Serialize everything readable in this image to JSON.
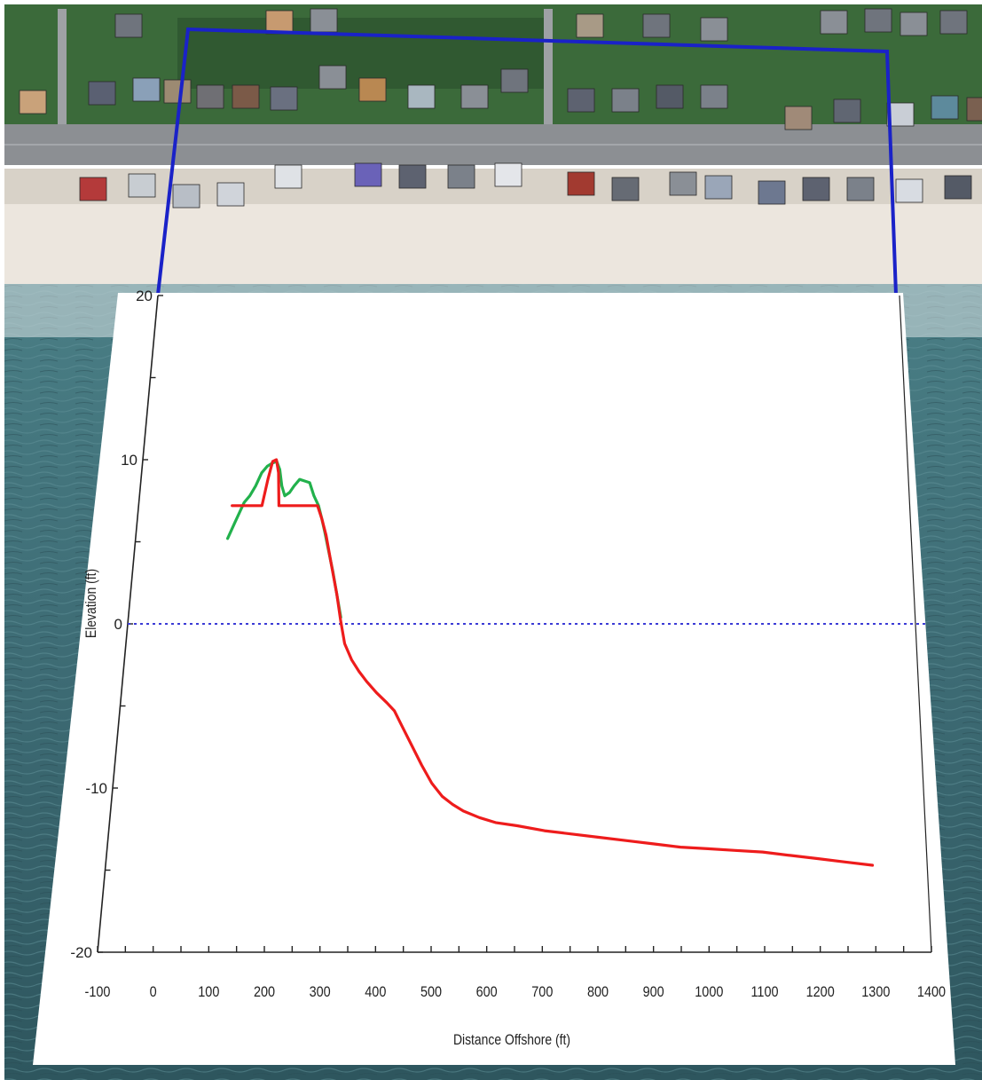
{
  "chart_data": {
    "type": "line",
    "title": "",
    "xlabel": "Distance Offshore (ft)",
    "ylabel": "Elevation (ft)",
    "xlim": [
      -100,
      1400
    ],
    "ylim": [
      -20,
      20
    ],
    "x_tick_labels": [
      "-100",
      "0",
      "100",
      "200",
      "300",
      "400",
      "500",
      "600",
      "700",
      "800",
      "900",
      "1000",
      "1100",
      "1200",
      "1300",
      "1400"
    ],
    "x_ticks": [
      -100,
      0,
      100,
      200,
      300,
      400,
      500,
      600,
      700,
      800,
      900,
      1000,
      1100,
      1200,
      1300,
      1400
    ],
    "y_tick_labels": [
      "20",
      "10",
      "0",
      "-10",
      "-20"
    ],
    "y_ticks": [
      20,
      10,
      0,
      -10,
      -20
    ],
    "reference_line": {
      "y": 0,
      "style": "dotted",
      "color": "#3b3bd6"
    },
    "series": [
      {
        "color": "#22b14c",
        "points": [
          [
            78,
            5.2
          ],
          [
            90,
            6.2
          ],
          [
            105,
            7.4
          ],
          [
            115,
            7.8
          ],
          [
            125,
            8.4
          ],
          [
            135,
            9.2
          ],
          [
            145,
            9.6
          ],
          [
            155,
            9.8
          ],
          [
            163,
            9.9
          ],
          [
            170,
            9.4
          ],
          [
            176,
            8.4
          ],
          [
            183,
            7.8
          ],
          [
            192,
            8.0
          ],
          [
            200,
            8.4
          ],
          [
            210,
            8.8
          ],
          [
            220,
            8.7
          ],
          [
            230,
            8.6
          ],
          [
            240,
            7.8
          ],
          [
            250,
            7.2
          ],
          [
            258,
            6.4
          ],
          [
            265,
            5.6
          ],
          [
            275,
            4.4
          ],
          [
            285,
            3.2
          ],
          [
            295,
            1.8
          ],
          [
            305,
            0.4
          ]
        ]
      },
      {
        "color": "#ee1c1c",
        "points": [
          [
            82,
            7.2
          ],
          [
            140,
            7.2
          ],
          [
            148,
            8.8
          ],
          [
            155,
            9.9
          ],
          [
            162,
            10.0
          ],
          [
            168,
            9.2
          ],
          [
            173,
            7.2
          ],
          [
            248,
            7.2
          ],
          [
            258,
            6.4
          ],
          [
            268,
            5.4
          ],
          [
            280,
            3.8
          ],
          [
            295,
            1.8
          ],
          [
            305,
            0.2
          ],
          [
            315,
            -1.2
          ],
          [
            330,
            -2.2
          ],
          [
            345,
            -2.9
          ],
          [
            360,
            -3.5
          ],
          [
            380,
            -4.2
          ],
          [
            400,
            -4.8
          ],
          [
            415,
            -5.3
          ],
          [
            430,
            -6.2
          ],
          [
            450,
            -7.4
          ],
          [
            470,
            -8.6
          ],
          [
            490,
            -9.7
          ],
          [
            510,
            -10.5
          ],
          [
            530,
            -11.0
          ],
          [
            550,
            -11.4
          ],
          [
            580,
            -11.8
          ],
          [
            610,
            -12.1
          ],
          [
            650,
            -12.3
          ],
          [
            700,
            -12.6
          ],
          [
            750,
            -12.8
          ],
          [
            800,
            -13.0
          ],
          [
            850,
            -13.2
          ],
          [
            900,
            -13.4
          ],
          [
            950,
            -13.6
          ],
          [
            1000,
            -13.7
          ],
          [
            1050,
            -13.8
          ],
          [
            1100,
            -13.9
          ],
          [
            1150,
            -14.1
          ],
          [
            1200,
            -14.3
          ],
          [
            1250,
            -14.5
          ],
          [
            1300,
            -14.7
          ]
        ]
      }
    ]
  },
  "colors": {
    "water": "#3f6e77",
    "sand": "#ece6de",
    "road": "#8c8f93",
    "vegetation": "#3b6a3a",
    "selection_box": "#1a22c8"
  },
  "scene": {
    "houses": [
      [
        22,
        102,
        "#c9a27a"
      ],
      [
        100,
        92,
        "#5a6072"
      ],
      [
        150,
        88,
        "#8aa0b8"
      ],
      [
        185,
        90,
        "#9c8a72"
      ],
      [
        222,
        96,
        "#6f6f74"
      ],
      [
        262,
        96,
        "#7b5a48"
      ],
      [
        305,
        98,
        "#6a7080"
      ],
      [
        360,
        74,
        "#8a8f96"
      ],
      [
        405,
        88,
        "#b98852"
      ],
      [
        460,
        96,
        "#a9b7c0"
      ],
      [
        520,
        96,
        "#8a8f96"
      ],
      [
        565,
        78,
        "#6f747d"
      ],
      [
        640,
        100,
        "#5d6270"
      ],
      [
        690,
        100,
        "#7b818a"
      ],
      [
        740,
        96,
        "#545a66"
      ],
      [
        790,
        96,
        "#7b818a"
      ],
      [
        885,
        120,
        "#a08a78"
      ],
      [
        940,
        112,
        "#606672"
      ],
      [
        1000,
        116,
        "#c9ced6"
      ],
      [
        1050,
        108,
        "#5d8a9c"
      ],
      [
        1090,
        110,
        "#7a6050"
      ],
      [
        90,
        200,
        "#b43a3a"
      ],
      [
        145,
        196,
        "#c8cdd2"
      ],
      [
        195,
        208,
        "#b8bec6"
      ],
      [
        245,
        206,
        "#d0d4da"
      ],
      [
        310,
        186,
        "#dfe2e6"
      ],
      [
        400,
        184,
        "#6a62b8"
      ],
      [
        450,
        186,
        "#5d6270"
      ],
      [
        505,
        186,
        "#7b818a"
      ],
      [
        558,
        184,
        "#e4e6ea"
      ],
      [
        640,
        194,
        "#a23a30"
      ],
      [
        690,
        200,
        "#666b74"
      ],
      [
        755,
        194,
        "#8a8f96"
      ],
      [
        795,
        198,
        "#9aa6b8"
      ],
      [
        855,
        204,
        "#6d7890"
      ],
      [
        905,
        200,
        "#5d6270"
      ],
      [
        955,
        200,
        "#7b818a"
      ],
      [
        1010,
        202,
        "#d8dce2"
      ],
      [
        1065,
        198,
        "#545a66"
      ],
      [
        130,
        16,
        "#6f747d"
      ],
      [
        300,
        12,
        "#c79a70"
      ],
      [
        350,
        10,
        "#8a8f96"
      ],
      [
        650,
        16,
        "#a89a86"
      ],
      [
        725,
        16,
        "#6f747d"
      ],
      [
        790,
        20,
        "#8a8f96"
      ],
      [
        925,
        12,
        "#8a8f96"
      ],
      [
        975,
        10,
        "#6f747d"
      ],
      [
        1015,
        14,
        "#8a8f96"
      ],
      [
        1060,
        12,
        "#6f747d"
      ]
    ]
  }
}
